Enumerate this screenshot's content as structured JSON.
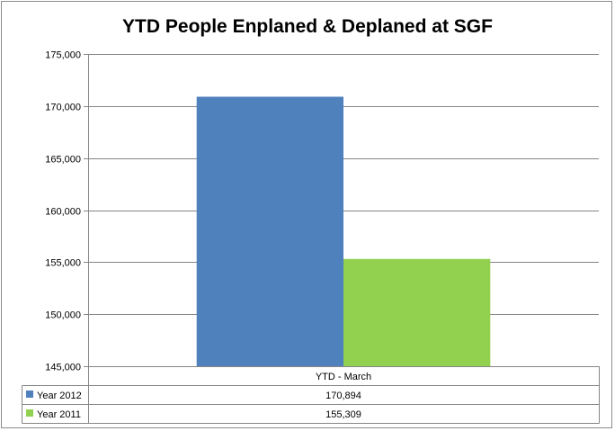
{
  "chart_data": {
    "type": "bar",
    "title": "YTD People Enplaned & Deplaned at SGF",
    "categories": [
      "YTD - March"
    ],
    "series": [
      {
        "name": "Year 2012",
        "values": [
          170894
        ],
        "value_labels": [
          "170,894"
        ],
        "color": "#4f81bd"
      },
      {
        "name": "Year 2011",
        "values": [
          155309
        ],
        "value_labels": [
          "155,309"
        ],
        "color": "#92d050"
      }
    ],
    "ylim": [
      145000,
      175000
    ],
    "y_ticks": [
      145000,
      150000,
      155000,
      160000,
      165000,
      170000,
      175000
    ],
    "y_tick_labels": [
      "145,000",
      "150,000",
      "155,000",
      "160,000",
      "165,000",
      "170,000",
      "175,000"
    ],
    "xlabel": "",
    "ylabel": "",
    "grid": true,
    "legend": "data-table"
  }
}
